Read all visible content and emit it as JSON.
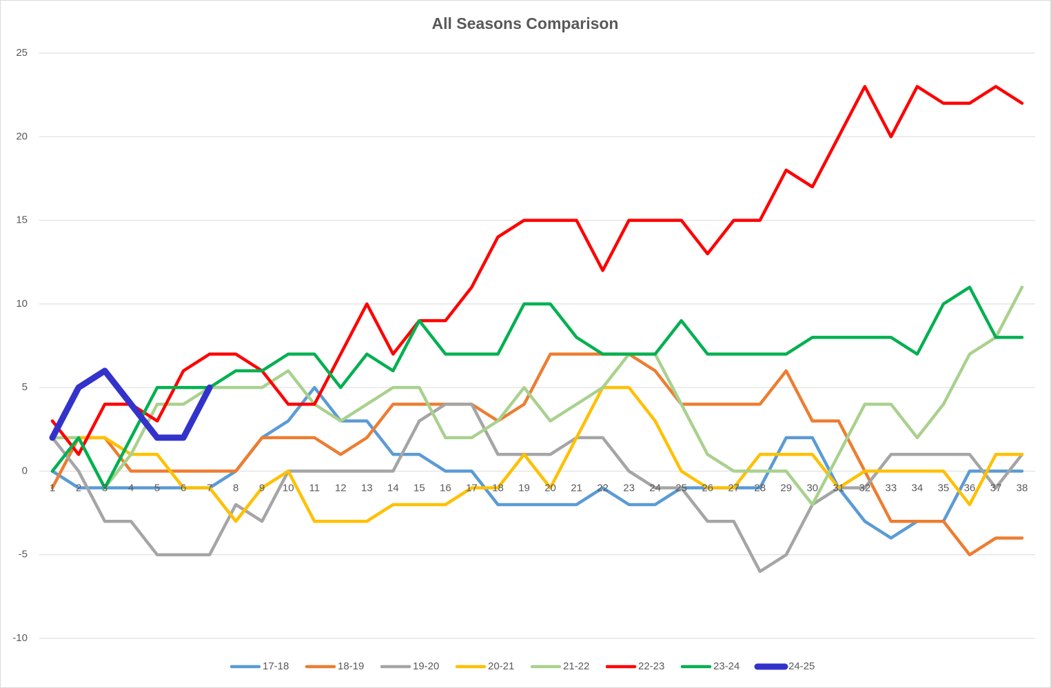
{
  "chart_data": {
    "type": "line",
    "title": "All Seasons Comparison",
    "categories": [
      "1",
      "2",
      "3",
      "4",
      "5",
      "6",
      "7",
      "8",
      "9",
      "10",
      "11",
      "12",
      "13",
      "14",
      "15",
      "16",
      "17",
      "18",
      "19",
      "20",
      "21",
      "22",
      "23",
      "24",
      "25",
      "26",
      "27",
      "28",
      "29",
      "30",
      "31",
      "32",
      "33",
      "34",
      "35",
      "36",
      "37",
      "38"
    ],
    "ylim": [
      -10,
      25
    ],
    "yticks": [
      -10,
      -5,
      0,
      5,
      10,
      15,
      20,
      25
    ],
    "grid": true,
    "legend": "bottom",
    "series": [
      {
        "name": "17-18",
        "color": "#5b9bd5",
        "line_width": 4.5,
        "values": [
          0,
          -1,
          -1,
          -1,
          -1,
          -1,
          -1,
          0,
          2,
          3,
          5,
          3,
          3,
          1,
          1,
          0,
          0,
          -2,
          -2,
          -2,
          -2,
          -1,
          -2,
          -2,
          -1,
          -1,
          -1,
          -1,
          2,
          2,
          -1,
          -3,
          -4,
          -3,
          -3,
          0,
          0,
          0
        ]
      },
      {
        "name": "18-19",
        "color": "#ed7d31",
        "line_width": 4.5,
        "values": [
          -1,
          2,
          2,
          0,
          0,
          0,
          0,
          0,
          2,
          2,
          2,
          1,
          2,
          4,
          4,
          4,
          4,
          3,
          4,
          7,
          7,
          7,
          7,
          6,
          4,
          4,
          4,
          4,
          6,
          3,
          3,
          0,
          -3,
          -3,
          -3,
          -5,
          -4,
          -4
        ]
      },
      {
        "name": "19-20",
        "color": "#a5a5a5",
        "line_width": 4.5,
        "values": [
          2,
          0,
          -3,
          -3,
          -5,
          -5,
          -5,
          -2,
          -3,
          0,
          0,
          0,
          0,
          0,
          3,
          4,
          4,
          1,
          1,
          1,
          2,
          2,
          0,
          -1,
          -1,
          -3,
          -3,
          -6,
          -5,
          -2,
          -1,
          -1,
          1,
          1,
          1,
          1,
          -1,
          1
        ]
      },
      {
        "name": "20-21",
        "color": "#ffc000",
        "line_width": 4.5,
        "values": [
          2,
          2,
          2,
          1,
          1,
          -1,
          -1,
          -3,
          -1,
          0,
          -3,
          -3,
          -3,
          -2,
          -2,
          -2,
          -1,
          -1,
          1,
          -1,
          2,
          5,
          5,
          3,
          0,
          -1,
          -1,
          1,
          1,
          1,
          -1,
          0,
          0,
          0,
          0,
          -2,
          1,
          1
        ]
      },
      {
        "name": "21-22",
        "color": "#a9d18e",
        "line_width": 4.5,
        "values": [
          2,
          2,
          -1,
          1,
          4,
          4,
          5,
          5,
          5,
          6,
          4,
          3,
          4,
          5,
          5,
          2,
          2,
          3,
          5,
          3,
          4,
          5,
          7,
          7,
          4,
          1,
          0,
          0,
          0,
          -2,
          1,
          4,
          4,
          2,
          4,
          7,
          8,
          11
        ]
      },
      {
        "name": "22-23",
        "color": "#ff0000",
        "line_width": 4.5,
        "values": [
          3,
          1,
          4,
          4,
          3,
          6,
          7,
          7,
          6,
          4,
          4,
          7,
          10,
          7,
          9,
          9,
          11,
          14,
          15,
          15,
          15,
          12,
          15,
          15,
          15,
          13,
          15,
          15,
          18,
          17,
          20,
          23,
          20,
          23,
          22,
          22,
          23,
          22
        ]
      },
      {
        "name": "23-24",
        "color": "#00b050",
        "line_width": 4.5,
        "values": [
          0,
          2,
          -1,
          2,
          5,
          5,
          5,
          6,
          6,
          7,
          7,
          5,
          7,
          6,
          9,
          7,
          7,
          7,
          10,
          10,
          8,
          7,
          7,
          7,
          9,
          7,
          7,
          7,
          7,
          8,
          8,
          8,
          8,
          7,
          10,
          11,
          8,
          8
        ]
      },
      {
        "name": "24-25",
        "color": "#3333cc",
        "line_width": 9,
        "values": [
          2,
          5,
          6,
          4,
          2,
          2,
          5,
          null,
          null,
          null,
          null,
          null,
          null,
          null,
          null,
          null,
          null,
          null,
          null,
          null,
          null,
          null,
          null,
          null,
          null,
          null,
          null,
          null,
          null,
          null,
          null,
          null,
          null,
          null,
          null,
          null,
          null,
          null
        ]
      }
    ]
  }
}
